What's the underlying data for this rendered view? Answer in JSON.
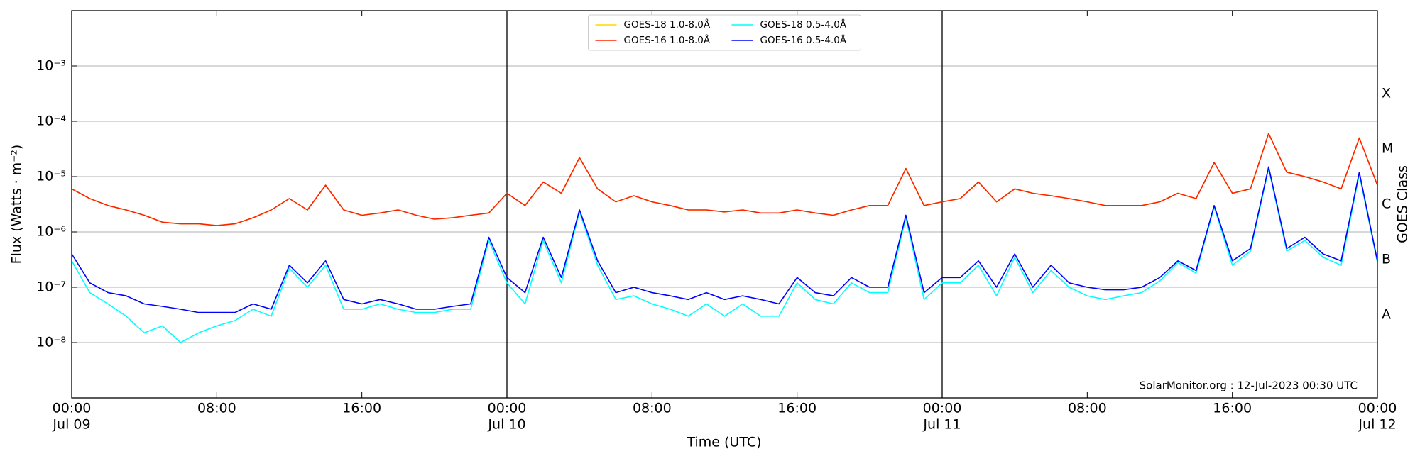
{
  "chart_data": {
    "type": "line",
    "log": true,
    "grid": true,
    "legend": "upper center",
    "xlabel": "Time (UTC)",
    "ylabel": "Flux (Watts · m⁻²)",
    "y2label": "GOES Class",
    "annotation": "SolarMonitor.org : 12-Jul-2023 00:30 UTC",
    "xlim": [
      "Jul 09 00:00",
      "Jul 12 00:00"
    ],
    "xticks": [
      {
        "value": "Jul 09 00:00",
        "label": "00:00"
      },
      {
        "value": "Jul 09 08:00",
        "label": "08:00"
      },
      {
        "value": "Jul 09 16:00",
        "label": "16:00"
      },
      {
        "value": "Jul 10 00:00",
        "label": "00:00"
      },
      {
        "value": "Jul 10 08:00",
        "label": "08:00"
      },
      {
        "value": "Jul 10 16:00",
        "label": "16:00"
      },
      {
        "value": "Jul 11 00:00",
        "label": "00:00"
      },
      {
        "value": "Jul 11 08:00",
        "label": "08:00"
      },
      {
        "value": "Jul 11 16:00",
        "label": "16:00"
      },
      {
        "value": "Jul 12 00:00",
        "label": "00:00"
      }
    ],
    "xtick_dates": [
      {
        "value": "Jul 09 00:00",
        "label": "Jul 09"
      },
      {
        "value": "Jul 10 00:00",
        "label": "Jul 10"
      },
      {
        "value": "Jul 11 00:00",
        "label": "Jul 11"
      },
      {
        "value": "Jul 12 00:00",
        "label": "Jul 12"
      }
    ],
    "vlines": [
      "Jul 10 00:00",
      "Jul 11 00:00"
    ],
    "ylim": [
      1e-09,
      0.01
    ],
    "yticks": [
      {
        "value": 1e-08,
        "label": "10⁻⁸"
      },
      {
        "value": 1e-07,
        "label": "10⁻⁷"
      },
      {
        "value": 1e-06,
        "label": "10⁻⁶"
      },
      {
        "value": 1e-05,
        "label": "10⁻⁵"
      },
      {
        "value": 0.0001,
        "label": "10⁻⁴"
      },
      {
        "value": 0.001,
        "label": "10⁻³"
      }
    ],
    "y2lim": [
      1e-09,
      0.01
    ],
    "y2ticks": [
      {
        "value": 3.16e-08,
        "label": "A"
      },
      {
        "value": 3.16e-07,
        "label": "B"
      },
      {
        "value": 3.16e-06,
        "label": "C"
      },
      {
        "value": 3.16e-05,
        "label": "M"
      },
      {
        "value": 0.000316,
        "label": "X"
      }
    ],
    "x": [
      "Jul 09 00:00",
      "Jul 09 01:00",
      "Jul 09 02:00",
      "Jul 09 03:00",
      "Jul 09 04:00",
      "Jul 09 05:00",
      "Jul 09 06:00",
      "Jul 09 07:00",
      "Jul 09 08:00",
      "Jul 09 09:00",
      "Jul 09 10:00",
      "Jul 09 11:00",
      "Jul 09 12:00",
      "Jul 09 13:00",
      "Jul 09 14:00",
      "Jul 09 15:00",
      "Jul 09 16:00",
      "Jul 09 17:00",
      "Jul 09 18:00",
      "Jul 09 19:00",
      "Jul 09 20:00",
      "Jul 09 21:00",
      "Jul 09 22:00",
      "Jul 09 23:00",
      "Jul 10 00:00",
      "Jul 10 01:00",
      "Jul 10 02:00",
      "Jul 10 03:00",
      "Jul 10 04:00",
      "Jul 10 05:00",
      "Jul 10 06:00",
      "Jul 10 07:00",
      "Jul 10 08:00",
      "Jul 10 09:00",
      "Jul 10 10:00",
      "Jul 10 11:00",
      "Jul 10 12:00",
      "Jul 10 13:00",
      "Jul 10 14:00",
      "Jul 10 15:00",
      "Jul 10 16:00",
      "Jul 10 17:00",
      "Jul 10 18:00",
      "Jul 10 19:00",
      "Jul 10 20:00",
      "Jul 10 21:00",
      "Jul 10 22:00",
      "Jul 10 23:00",
      "Jul 11 00:00",
      "Jul 11 01:00",
      "Jul 11 02:00",
      "Jul 11 03:00",
      "Jul 11 04:00",
      "Jul 11 05:00",
      "Jul 11 06:00",
      "Jul 11 07:00",
      "Jul 11 08:00",
      "Jul 11 09:00",
      "Jul 11 10:00",
      "Jul 11 11:00",
      "Jul 11 12:00",
      "Jul 11 13:00",
      "Jul 11 14:00",
      "Jul 11 15:00",
      "Jul 11 16:00",
      "Jul 11 17:00",
      "Jul 11 18:00",
      "Jul 11 19:00",
      "Jul 11 20:00",
      "Jul 11 21:00",
      "Jul 11 22:00",
      "Jul 11 23:00",
      "Jul 12 00:00"
    ],
    "series": [
      {
        "name": "GOES-18 1.0-8.0Å",
        "color": "#ffd700",
        "values": [
          6e-06,
          4e-06,
          3e-06,
          2.5e-06,
          2e-06,
          1.5e-06,
          1.4e-06,
          1.4e-06,
          1.3e-06,
          1.4e-06,
          1.8e-06,
          2.5e-06,
          4e-06,
          2.5e-06,
          7e-06,
          2.5e-06,
          2e-06,
          2.2e-06,
          2.5e-06,
          2e-06,
          1.7e-06,
          1.8e-06,
          2e-06,
          2.2e-06,
          5e-06,
          3e-06,
          8e-06,
          5e-06,
          2.2e-05,
          6e-06,
          3.5e-06,
          4.5e-06,
          3.5e-06,
          3e-06,
          2.5e-06,
          2.5e-06,
          2.3e-06,
          2.5e-06,
          2.2e-06,
          2.2e-06,
          2.5e-06,
          2.2e-06,
          2e-06,
          2.5e-06,
          3e-06,
          3e-06,
          1.4e-05,
          3e-06,
          3.5e-06,
          4e-06,
          8e-06,
          3.5e-06,
          6e-06,
          5e-06,
          4.5e-06,
          4e-06,
          3.5e-06,
          3e-06,
          3e-06,
          3e-06,
          3.5e-06,
          5e-06,
          4e-06,
          1.8e-05,
          5e-06,
          6e-06,
          6e-05,
          1.2e-05,
          1e-05,
          8e-06,
          6e-06,
          5e-05,
          7e-06
        ]
      },
      {
        "name": "GOES-16 1.0-8.0Å",
        "color": "#ff2200",
        "values": [
          6e-06,
          4e-06,
          3e-06,
          2.5e-06,
          2e-06,
          1.5e-06,
          1.4e-06,
          1.4e-06,
          1.3e-06,
          1.4e-06,
          1.8e-06,
          2.5e-06,
          4e-06,
          2.5e-06,
          7e-06,
          2.5e-06,
          2e-06,
          2.2e-06,
          2.5e-06,
          2e-06,
          1.7e-06,
          1.8e-06,
          2e-06,
          2.2e-06,
          5e-06,
          3e-06,
          8e-06,
          5e-06,
          2.2e-05,
          6e-06,
          3.5e-06,
          4.5e-06,
          3.5e-06,
          3e-06,
          2.5e-06,
          2.5e-06,
          2.3e-06,
          2.5e-06,
          2.2e-06,
          2.2e-06,
          2.5e-06,
          2.2e-06,
          2e-06,
          2.5e-06,
          3e-06,
          3e-06,
          1.4e-05,
          3e-06,
          3.5e-06,
          4e-06,
          8e-06,
          3.5e-06,
          6e-06,
          5e-06,
          4.5e-06,
          4e-06,
          3.5e-06,
          3e-06,
          3e-06,
          3e-06,
          3.5e-06,
          5e-06,
          4e-06,
          1.8e-05,
          5e-06,
          6e-06,
          6e-05,
          1.2e-05,
          1e-05,
          8e-06,
          6e-06,
          5e-05,
          7e-06
        ]
      },
      {
        "name": "GOES-18 0.5-4.0Å",
        "color": "#00ffff",
        "values": [
          3e-07,
          8e-08,
          5e-08,
          3e-08,
          1.5e-08,
          2e-08,
          1e-08,
          1.5e-08,
          2e-08,
          2.5e-08,
          4e-08,
          3e-08,
          2.2e-07,
          1e-07,
          2.5e-07,
          4e-08,
          4e-08,
          5e-08,
          4e-08,
          3.5e-08,
          3.5e-08,
          4e-08,
          4e-08,
          7e-07,
          1.2e-07,
          5e-08,
          7e-07,
          1.2e-07,
          2.3e-06,
          2.5e-07,
          6e-08,
          7e-08,
          5e-08,
          4e-08,
          3e-08,
          5e-08,
          3e-08,
          5e-08,
          3e-08,
          3e-08,
          1.2e-07,
          6e-08,
          5e-08,
          1.2e-07,
          8e-08,
          8e-08,
          1.8e-06,
          6e-08,
          1.2e-07,
          1.2e-07,
          2.5e-07,
          7e-08,
          3.5e-07,
          8e-08,
          2e-07,
          1e-07,
          7e-08,
          6e-08,
          7e-08,
          8e-08,
          1.3e-07,
          2.8e-07,
          1.8e-07,
          2.8e-06,
          2.5e-07,
          4.5e-07,
          1.4e-05,
          4.5e-07,
          7e-07,
          3.5e-07,
          2.5e-07,
          1.1e-05,
          2.8e-07
        ]
      },
      {
        "name": "GOES-16 0.5-4.0Å",
        "color": "#0000ff",
        "values": [
          4e-07,
          1.2e-07,
          8e-08,
          7e-08,
          5e-08,
          4.5e-08,
          4e-08,
          3.5e-08,
          3.5e-08,
          3.5e-08,
          5e-08,
          4e-08,
          2.5e-07,
          1.2e-07,
          3e-07,
          6e-08,
          5e-08,
          6e-08,
          5e-08,
          4e-08,
          4e-08,
          4.5e-08,
          5e-08,
          8e-07,
          1.5e-07,
          8e-08,
          8e-07,
          1.5e-07,
          2.5e-06,
          3e-07,
          8e-08,
          1e-07,
          8e-08,
          7e-08,
          6e-08,
          8e-08,
          6e-08,
          7e-08,
          6e-08,
          5e-08,
          1.5e-07,
          8e-08,
          7e-08,
          1.5e-07,
          1e-07,
          1e-07,
          2e-06,
          8e-08,
          1.5e-07,
          1.5e-07,
          3e-07,
          1e-07,
          4e-07,
          1e-07,
          2.5e-07,
          1.2e-07,
          1e-07,
          9e-08,
          9e-08,
          1e-07,
          1.5e-07,
          3e-07,
          2e-07,
          3e-06,
          3e-07,
          5e-07,
          1.5e-05,
          5e-07,
          8e-07,
          4e-07,
          3e-07,
          1.2e-05,
          3e-07
        ]
      }
    ]
  }
}
